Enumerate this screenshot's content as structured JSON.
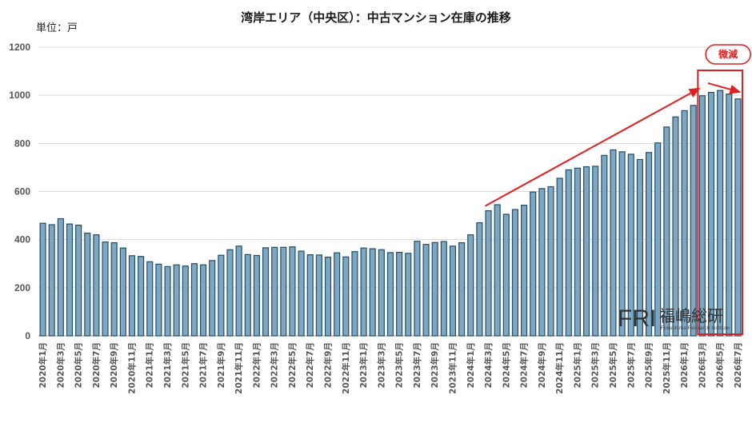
{
  "chart_data": {
    "type": "bar",
    "title": "湾岸エリア（中央区）：中古マンション在庫の推移",
    "ylabel": "単位：戸",
    "ylim": [
      0,
      1200
    ],
    "yticks": [
      0,
      200,
      400,
      600,
      800,
      1000,
      1200
    ],
    "grid": true,
    "bar_color": "#7fa7c2",
    "bar_edge_color": "#1f4e6a",
    "highlight_color": "#e02020",
    "categories": [
      "2020年1月",
      "2020年2月",
      "2020年3月",
      "2020年4月",
      "2020年5月",
      "2020年6月",
      "2020年7月",
      "2020年8月",
      "2020年9月",
      "2020年10月",
      "2020年11月",
      "2020年12月",
      "2021年1月",
      "2021年2月",
      "2021年3月",
      "2021年4月",
      "2021年5月",
      "2021年6月",
      "2021年7月",
      "2021年8月",
      "2021年9月",
      "2021年10月",
      "2021年11月",
      "2021年12月",
      "2022年1月",
      "2022年2月",
      "2022年3月",
      "2022年4月",
      "2022年5月",
      "2022年6月",
      "2022年7月",
      "2022年8月",
      "2022年9月",
      "2022年10月",
      "2022年11月",
      "2022年12月",
      "2023年1月",
      "2023年2月",
      "2023年3月",
      "2023年4月",
      "2023年5月",
      "2023年6月",
      "2023年7月",
      "2023年8月",
      "2023年9月",
      "2023年10月",
      "2023年11月",
      "2023年12月",
      "2024年1月",
      "2024年2月",
      "2024年3月",
      "2024年4月",
      "2024年5月",
      "2024年6月",
      "2024年7月",
      "2024年8月",
      "2024年9月",
      "2024年10月",
      "2024年11月",
      "2024年12月",
      "2025年1月",
      "2025年2月",
      "2025年3月",
      "2025年4月",
      "2025年5月",
      "2025年6月",
      "2025年7月",
      "2025年8月",
      "2025年9月",
      "2025年10月",
      "2025年11月",
      "2025年12月",
      "2026年1月",
      "2026年2月",
      "2026年3月",
      "2026年4月",
      "2026年5月",
      "2026年6月",
      "2026年7月"
    ],
    "values": [
      468,
      462,
      487,
      465,
      460,
      427,
      420,
      390,
      387,
      365,
      333,
      330,
      308,
      298,
      288,
      295,
      290,
      300,
      295,
      313,
      335,
      358,
      373,
      338,
      334,
      366,
      368,
      368,
      370,
      352,
      337,
      336,
      327,
      345,
      328,
      350,
      365,
      362,
      358,
      346,
      347,
      343,
      393,
      380,
      388,
      392,
      373,
      387,
      420,
      470,
      520,
      545,
      505,
      525,
      543,
      598,
      612,
      620,
      655,
      690,
      697,
      703,
      705,
      750,
      773,
      765,
      755,
      733,
      762,
      802,
      868,
      910,
      936,
      958,
      998,
      1012,
      1020,
      1005,
      985
    ],
    "xtick_labels": [
      "2020年1月",
      "2020年3月",
      "2020年5月",
      "2020年7月",
      "2020年9月",
      "2020年11月",
      "2021年1月",
      "2021年3月",
      "2021年5月",
      "2021年7月",
      "2021年9月",
      "2021年11月",
      "2022年1月",
      "2022年3月",
      "2022年5月",
      "2022年7月",
      "2022年9月",
      "2022年11月",
      "2023年1月",
      "2023年3月",
      "2023年5月",
      "2023年7月",
      "2023年9月",
      "2023年11月",
      "2024年1月",
      "2024年3月",
      "2024年5月",
      "2024年7月",
      "2024年9月",
      "2024年11月",
      "2025年1月",
      "2025年3月",
      "2025年5月",
      "2025年7月",
      "2025年9月",
      "2025年11月",
      "2026年1月",
      "2026年3月",
      "2026年5月",
      "2026年7月"
    ],
    "annotations": {
      "trend_arrow": {
        "from": "2024年3月",
        "to": "2026年3月"
      },
      "decline_label": "微減",
      "decline_arrow": {
        "from": "2026年4月",
        "to": "2026年7月"
      },
      "highlight_range": {
        "from": "2026年3月",
        "to": "2026年7月"
      }
    }
  },
  "watermark": {
    "mark": "FRI",
    "name": "福嶋総研",
    "subtitle": "Fukushima Research Institute"
  }
}
